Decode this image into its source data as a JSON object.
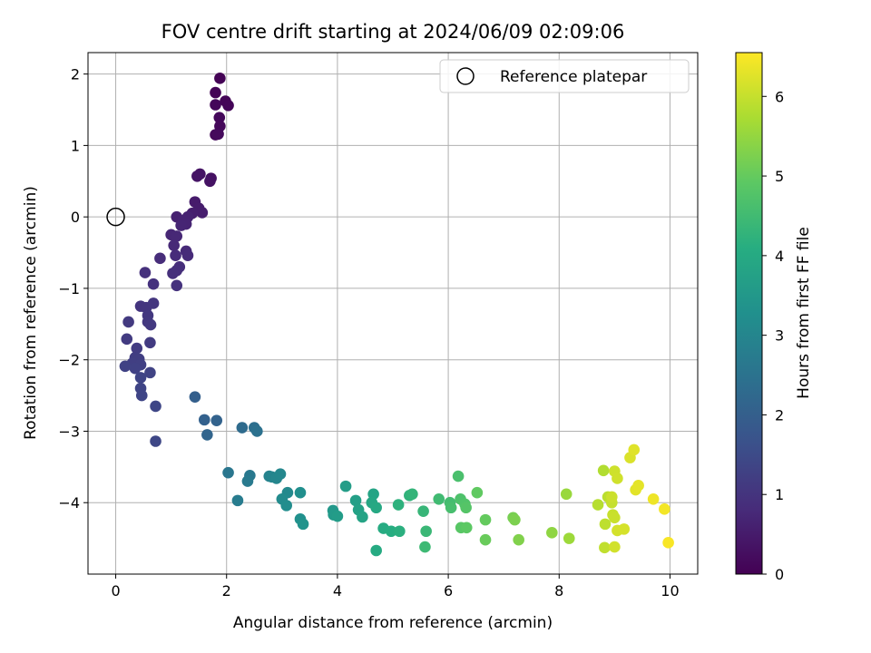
{
  "chart_data": {
    "type": "scatter",
    "title": "FOV centre drift starting at 2024/06/09 02:09:06",
    "xlabel": "Angular distance from reference (arcmin)",
    "ylabel": "Rotation from reference (arcmin)",
    "xlim": [
      -0.5,
      10.5
    ],
    "ylim": [
      -5.0,
      2.3
    ],
    "x_ticks": [
      0,
      2,
      4,
      6,
      8,
      10
    ],
    "y_ticks": [
      -4,
      -3,
      -2,
      -1,
      0,
      1,
      2
    ],
    "grid": true,
    "legend": {
      "position": "top-right",
      "entries": [
        {
          "label": "Reference platepar",
          "marker": "hollow-circle"
        }
      ]
    },
    "reference_point": {
      "x": 0,
      "y": 0
    },
    "colorbar": {
      "label": "Hours from first FF file",
      "colormap": "viridis",
      "range": [
        0,
        6.55
      ],
      "ticks": [
        0,
        1,
        2,
        3,
        4,
        5,
        6
      ]
    },
    "points": [
      {
        "x": 1.88,
        "y": 1.94,
        "t": 0.03
      },
      {
        "x": 1.8,
        "y": 1.74,
        "t": 0.05
      },
      {
        "x": 1.98,
        "y": 1.62,
        "t": 0.07
      },
      {
        "x": 2.03,
        "y": 1.56,
        "t": 0.08
      },
      {
        "x": 1.8,
        "y": 1.57,
        "t": 0.1
      },
      {
        "x": 1.87,
        "y": 1.39,
        "t": 0.12
      },
      {
        "x": 1.88,
        "y": 1.27,
        "t": 0.14
      },
      {
        "x": 1.8,
        "y": 1.15,
        "t": 0.16
      },
      {
        "x": 1.85,
        "y": 1.16,
        "t": 0.18
      },
      {
        "x": 1.72,
        "y": 0.54,
        "t": 0.3
      },
      {
        "x": 1.7,
        "y": 0.5,
        "t": 0.32
      },
      {
        "x": 1.52,
        "y": 0.6,
        "t": 0.34
      },
      {
        "x": 1.47,
        "y": 0.57,
        "t": 0.36
      },
      {
        "x": 1.43,
        "y": 0.21,
        "t": 0.5
      },
      {
        "x": 1.5,
        "y": 0.12,
        "t": 0.52
      },
      {
        "x": 1.56,
        "y": 0.06,
        "t": 0.54
      },
      {
        "x": 1.38,
        "y": 0.05,
        "t": 0.56
      },
      {
        "x": 1.1,
        "y": 0.0,
        "t": 0.6
      },
      {
        "x": 1.3,
        "y": 0.0,
        "t": 0.62
      },
      {
        "x": 1.22,
        "y": -0.05,
        "t": 0.64
      },
      {
        "x": 1.27,
        "y": -0.1,
        "t": 0.66
      },
      {
        "x": 1.18,
        "y": -0.12,
        "t": 0.68
      },
      {
        "x": 1.0,
        "y": -0.25,
        "t": 0.72
      },
      {
        "x": 1.1,
        "y": -0.27,
        "t": 0.74
      },
      {
        "x": 1.05,
        "y": -0.4,
        "t": 0.76
      },
      {
        "x": 1.27,
        "y": -0.48,
        "t": 0.78
      },
      {
        "x": 1.3,
        "y": -0.54,
        "t": 0.8
      },
      {
        "x": 1.08,
        "y": -0.54,
        "t": 0.82
      },
      {
        "x": 0.8,
        "y": -0.58,
        "t": 0.84
      },
      {
        "x": 1.15,
        "y": -0.7,
        "t": 0.86
      },
      {
        "x": 1.1,
        "y": -0.75,
        "t": 0.88
      },
      {
        "x": 1.03,
        "y": -0.79,
        "t": 0.9
      },
      {
        "x": 0.53,
        "y": -0.78,
        "t": 0.92
      },
      {
        "x": 0.68,
        "y": -0.94,
        "t": 0.94
      },
      {
        "x": 1.1,
        "y": -0.96,
        "t": 0.96
      },
      {
        "x": 0.45,
        "y": -1.25,
        "t": 1.0
      },
      {
        "x": 0.55,
        "y": -1.27,
        "t": 1.02
      },
      {
        "x": 0.68,
        "y": -1.21,
        "t": 1.04
      },
      {
        "x": 0.58,
        "y": -1.38,
        "t": 1.06
      },
      {
        "x": 0.58,
        "y": -1.47,
        "t": 1.08
      },
      {
        "x": 0.63,
        "y": -1.51,
        "t": 1.1
      },
      {
        "x": 0.23,
        "y": -1.47,
        "t": 1.12
      },
      {
        "x": 0.2,
        "y": -1.71,
        "t": 1.14
      },
      {
        "x": 0.62,
        "y": -1.76,
        "t": 1.16
      },
      {
        "x": 0.38,
        "y": -1.84,
        "t": 1.18
      },
      {
        "x": 0.35,
        "y": -1.97,
        "t": 1.2
      },
      {
        "x": 0.42,
        "y": -1.99,
        "t": 1.22
      },
      {
        "x": 0.3,
        "y": -2.05,
        "t": 1.24
      },
      {
        "x": 0.45,
        "y": -2.07,
        "t": 1.26
      },
      {
        "x": 0.35,
        "y": -2.12,
        "t": 1.28
      },
      {
        "x": 0.17,
        "y": -2.09,
        "t": 1.3
      },
      {
        "x": 0.62,
        "y": -2.18,
        "t": 1.32
      },
      {
        "x": 0.45,
        "y": -2.25,
        "t": 1.34
      },
      {
        "x": 0.45,
        "y": -2.4,
        "t": 1.36
      },
      {
        "x": 0.47,
        "y": -2.5,
        "t": 1.38
      },
      {
        "x": 0.72,
        "y": -2.65,
        "t": 1.4
      },
      {
        "x": 0.72,
        "y": -3.14,
        "t": 1.42
      },
      {
        "x": 1.43,
        "y": -2.52,
        "t": 2.0
      },
      {
        "x": 1.6,
        "y": -2.84,
        "t": 2.05
      },
      {
        "x": 1.82,
        "y": -2.85,
        "t": 2.1
      },
      {
        "x": 1.65,
        "y": -3.05,
        "t": 2.15
      },
      {
        "x": 2.28,
        "y": -2.95,
        "t": 2.3
      },
      {
        "x": 2.5,
        "y": -2.95,
        "t": 2.4
      },
      {
        "x": 2.55,
        "y": -3.0,
        "t": 2.45
      },
      {
        "x": 2.03,
        "y": -3.58,
        "t": 2.6
      },
      {
        "x": 2.42,
        "y": -3.62,
        "t": 2.65
      },
      {
        "x": 2.38,
        "y": -3.7,
        "t": 2.7
      },
      {
        "x": 2.2,
        "y": -3.97,
        "t": 2.75
      },
      {
        "x": 2.77,
        "y": -3.63,
        "t": 2.9
      },
      {
        "x": 2.82,
        "y": -3.64,
        "t": 2.95
      },
      {
        "x": 2.9,
        "y": -3.66,
        "t": 3.0
      },
      {
        "x": 2.97,
        "y": -3.6,
        "t": 3.05
      },
      {
        "x": 3.1,
        "y": -3.86,
        "t": 3.1
      },
      {
        "x": 3.0,
        "y": -3.95,
        "t": 3.15
      },
      {
        "x": 3.08,
        "y": -4.04,
        "t": 3.2
      },
      {
        "x": 3.33,
        "y": -3.86,
        "t": 3.25
      },
      {
        "x": 3.33,
        "y": -4.23,
        "t": 3.3
      },
      {
        "x": 3.38,
        "y": -4.3,
        "t": 3.35
      },
      {
        "x": 3.92,
        "y": -4.11,
        "t": 3.5
      },
      {
        "x": 3.93,
        "y": -4.17,
        "t": 3.55
      },
      {
        "x": 4.0,
        "y": -4.19,
        "t": 3.6
      },
      {
        "x": 4.15,
        "y": -3.77,
        "t": 3.65
      },
      {
        "x": 4.33,
        "y": -3.97,
        "t": 3.7
      },
      {
        "x": 4.38,
        "y": -4.1,
        "t": 3.75
      },
      {
        "x": 4.45,
        "y": -4.2,
        "t": 3.8
      },
      {
        "x": 4.65,
        "y": -3.88,
        "t": 3.85
      },
      {
        "x": 4.62,
        "y": -4.0,
        "t": 3.9
      },
      {
        "x": 4.7,
        "y": -4.07,
        "t": 3.95
      },
      {
        "x": 4.7,
        "y": -4.67,
        "t": 4.0
      },
      {
        "x": 4.83,
        "y": -4.36,
        "t": 4.05
      },
      {
        "x": 4.97,
        "y": -4.4,
        "t": 4.1
      },
      {
        "x": 5.12,
        "y": -4.4,
        "t": 4.15
      },
      {
        "x": 5.1,
        "y": -4.03,
        "t": 4.2
      },
      {
        "x": 5.3,
        "y": -3.9,
        "t": 4.25
      },
      {
        "x": 5.35,
        "y": -3.88,
        "t": 4.3
      },
      {
        "x": 5.55,
        "y": -4.12,
        "t": 4.35
      },
      {
        "x": 5.6,
        "y": -4.4,
        "t": 4.4
      },
      {
        "x": 5.58,
        "y": -4.62,
        "t": 4.45
      },
      {
        "x": 5.83,
        "y": -3.95,
        "t": 4.5
      },
      {
        "x": 6.03,
        "y": -4.0,
        "t": 4.55
      },
      {
        "x": 6.05,
        "y": -4.07,
        "t": 4.6
      },
      {
        "x": 6.18,
        "y": -3.63,
        "t": 4.65
      },
      {
        "x": 6.22,
        "y": -3.95,
        "t": 4.7
      },
      {
        "x": 6.3,
        "y": -4.02,
        "t": 4.75
      },
      {
        "x": 6.32,
        "y": -4.07,
        "t": 4.8
      },
      {
        "x": 6.23,
        "y": -4.35,
        "t": 4.85
      },
      {
        "x": 6.33,
        "y": -4.35,
        "t": 4.9
      },
      {
        "x": 6.52,
        "y": -3.86,
        "t": 4.95
      },
      {
        "x": 6.67,
        "y": -4.24,
        "t": 5.0
      },
      {
        "x": 6.67,
        "y": -4.52,
        "t": 5.05
      },
      {
        "x": 7.17,
        "y": -4.21,
        "t": 5.2
      },
      {
        "x": 7.2,
        "y": -4.24,
        "t": 5.25
      },
      {
        "x": 7.27,
        "y": -4.52,
        "t": 5.3
      },
      {
        "x": 7.87,
        "y": -4.42,
        "t": 5.45
      },
      {
        "x": 8.13,
        "y": -3.88,
        "t": 5.55
      },
      {
        "x": 8.18,
        "y": -4.5,
        "t": 5.6
      },
      {
        "x": 8.8,
        "y": -3.55,
        "t": 5.8
      },
      {
        "x": 8.7,
        "y": -4.03,
        "t": 5.85
      },
      {
        "x": 8.88,
        "y": -3.92,
        "t": 5.9
      },
      {
        "x": 8.83,
        "y": -4.3,
        "t": 5.92
      },
      {
        "x": 8.82,
        "y": -4.63,
        "t": 5.95
      },
      {
        "x": 8.95,
        "y": -4.0,
        "t": 6.0
      },
      {
        "x": 8.97,
        "y": -4.17,
        "t": 6.02
      },
      {
        "x": 9.0,
        "y": -4.21,
        "t": 6.04
      },
      {
        "x": 8.95,
        "y": -3.92,
        "t": 6.06
      },
      {
        "x": 9.0,
        "y": -3.56,
        "t": 6.08
      },
      {
        "x": 9.05,
        "y": -3.66,
        "t": 6.1
      },
      {
        "x": 9.0,
        "y": -4.62,
        "t": 6.12
      },
      {
        "x": 9.05,
        "y": -4.39,
        "t": 6.14
      },
      {
        "x": 9.17,
        "y": -4.37,
        "t": 6.16
      },
      {
        "x": 9.28,
        "y": -3.37,
        "t": 6.2
      },
      {
        "x": 9.35,
        "y": -3.26,
        "t": 6.25
      },
      {
        "x": 9.38,
        "y": -3.82,
        "t": 6.28
      },
      {
        "x": 9.43,
        "y": -3.76,
        "t": 6.3
      },
      {
        "x": 9.7,
        "y": -3.95,
        "t": 6.4
      },
      {
        "x": 9.9,
        "y": -4.09,
        "t": 6.45
      },
      {
        "x": 9.97,
        "y": -4.56,
        "t": 6.5
      }
    ]
  }
}
